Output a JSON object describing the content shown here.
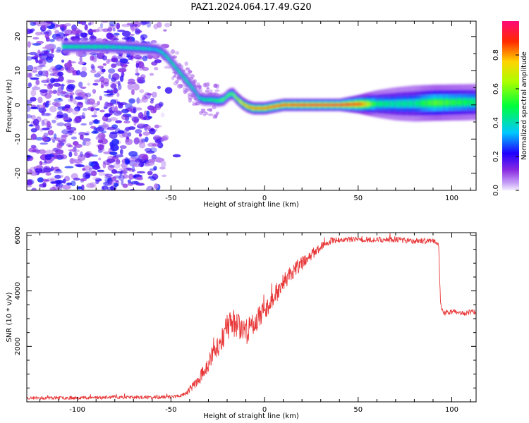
{
  "title": "PAZ1.2024.064.17.49.G20",
  "colors": {
    "snr_line": "#e8393a",
    "ridge_core": "#e8104a",
    "noise": "#8a2be2"
  },
  "colorbar": {
    "label": "Normalized spectral amplitude",
    "ticks": [
      "0.0",
      "0.2",
      "0.4",
      "0.6",
      "0.8"
    ],
    "tick_values": [
      0.0,
      0.2,
      0.4,
      0.6,
      0.8
    ],
    "range": [
      0,
      1
    ],
    "colormap": "rainbow"
  },
  "chart_data": [
    {
      "type": "heatmap",
      "name": "spectrogram",
      "xlabel": "Height of straight line (km)",
      "ylabel": "Frequency (Hz)",
      "xlim": [
        -127,
        113
      ],
      "ylim": [
        -25,
        24.5
      ],
      "xticks": [
        -100,
        -50,
        0,
        50,
        100
      ],
      "xtick_labels": [
        "-100",
        "-50",
        "0",
        "50",
        "100"
      ],
      "yticks": [
        -20,
        -10,
        0,
        10,
        20
      ],
      "ytick_labels": [
        "-20",
        "-10",
        "0",
        "10",
        "20"
      ],
      "ridge": {
        "x": [
          -108,
          -95,
          -85,
          -75,
          -65,
          -58,
          -55,
          -52,
          -49,
          -46,
          -43,
          -40,
          -37,
          -35,
          -32,
          -28,
          -25,
          -22,
          -19,
          -17,
          -15,
          -12,
          -9,
          -6,
          -3,
          0,
          5,
          10,
          20,
          30,
          40,
          50,
          60,
          70,
          80,
          90,
          100,
          110
        ],
        "y": [
          17,
          17,
          17,
          16.8,
          16.5,
          16.2,
          15.5,
          14,
          12,
          10,
          8,
          6,
          4,
          2,
          1.5,
          1.5,
          1.2,
          1.5,
          3,
          3.3,
          2,
          0.5,
          -0.5,
          -1,
          -1,
          -1,
          -0.5,
          0,
          0,
          0,
          0,
          0.2,
          0.3,
          0.3,
          0.4,
          0.6,
          0.7,
          0.8
        ],
        "amplitude": [
          0.5,
          0.5,
          0.5,
          0.45,
          0.45,
          0.4,
          0.45,
          0.5,
          0.5,
          0.5,
          0.5,
          0.5,
          0.45,
          0.45,
          0.5,
          0.5,
          0.55,
          0.6,
          0.6,
          0.6,
          0.7,
          0.8,
          0.85,
          0.9,
          0.9,
          0.9,
          0.95,
          0.95,
          1.0,
          1.0,
          1.0,
          0.95,
          0.5,
          0.45,
          0.45,
          0.6,
          0.55,
          0.5
        ],
        "bandwidth_hz": [
          0.8,
          0.8,
          0.8,
          0.8,
          0.8,
          0.8,
          0.8,
          0.8,
          0.8,
          0.8,
          0.8,
          0.8,
          0.8,
          0.8,
          0.8,
          0.8,
          0.8,
          0.8,
          0.8,
          0.8,
          0.8,
          0.8,
          0.8,
          0.8,
          0.8,
          0.8,
          0.8,
          0.8,
          0.8,
          0.8,
          0.8,
          1.2,
          1.8,
          2.2,
          2.4,
          2.4,
          2.4,
          2.4
        ]
      },
      "noise_region_x": [
        -127,
        -45
      ],
      "noise_amplitude_range": [
        0.05,
        0.25
      ]
    },
    {
      "type": "line",
      "name": "snr",
      "xlabel": "Height of straight line (km)",
      "ylabel": "SNR (10 * v/v)",
      "xlim": [
        -127,
        113
      ],
      "ylim": [
        0,
        6100
      ],
      "xticks": [
        -100,
        -50,
        0,
        50,
        100
      ],
      "xtick_labels": [
        "-100",
        "-50",
        "0",
        "50",
        "100"
      ],
      "yticks": [
        2000,
        4000,
        6000
      ],
      "ytick_labels": [
        "2000",
        "4000",
        "6000"
      ],
      "envelope": {
        "x": [
          -127,
          -100,
          -80,
          -60,
          -50,
          -45,
          -42,
          -38,
          -35,
          -30,
          -25,
          -20,
          -15,
          -10,
          -5,
          0,
          5,
          10,
          15,
          20,
          25,
          30,
          35,
          40,
          50,
          60,
          70,
          80,
          90,
          93,
          94,
          96,
          100,
          105,
          113
        ],
        "y": [
          140,
          150,
          170,
          160,
          180,
          220,
          300,
          600,
          800,
          1400,
          2000,
          2700,
          2900,
          2500,
          2900,
          3300,
          3800,
          4300,
          4700,
          5000,
          5300,
          5600,
          5800,
          5850,
          5850,
          5850,
          5850,
          5800,
          5800,
          5700,
          3500,
          3200,
          3250,
          3200,
          3250
        ]
      },
      "noise_amplitude": [
        60,
        60,
        60,
        60,
        60,
        60,
        80,
        150,
        200,
        350,
        450,
        500,
        550,
        500,
        400,
        350,
        300,
        300,
        300,
        250,
        200,
        150,
        120,
        100,
        100,
        100,
        100,
        100,
        100,
        100,
        120,
        100,
        100,
        100,
        100
      ]
    }
  ]
}
